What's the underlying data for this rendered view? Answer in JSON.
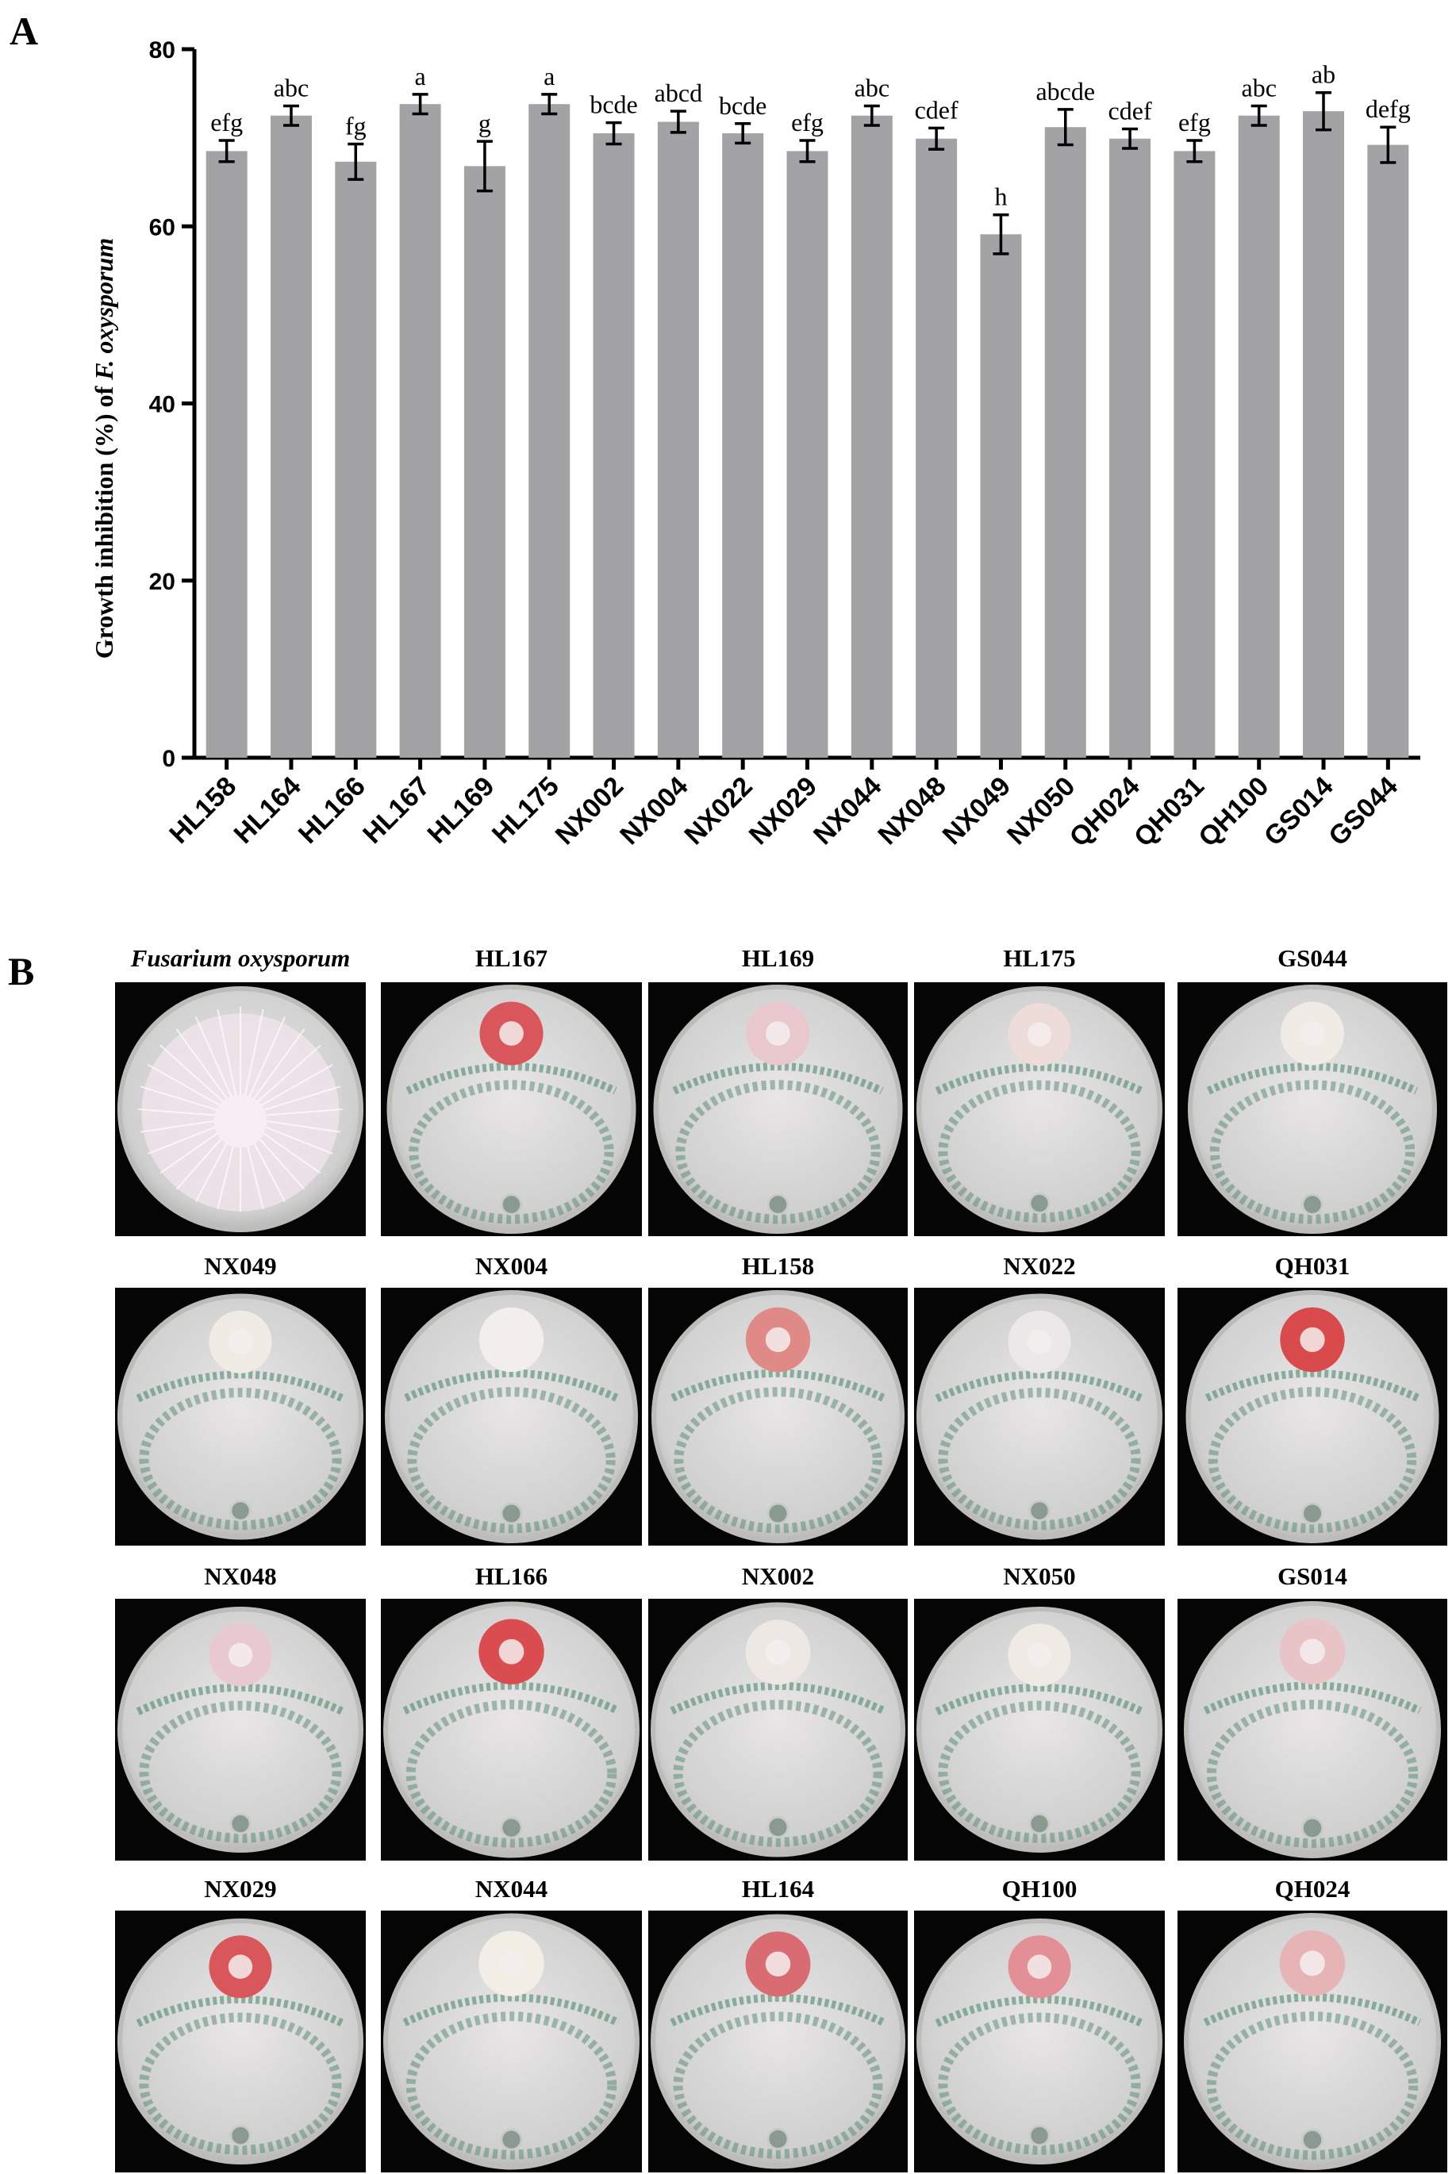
{
  "panels": {
    "a": "A",
    "b": "B"
  },
  "chart_data": {
    "type": "bar",
    "title": "",
    "xlabel": "",
    "ylabel_prefix": "Growth inhibition (%) of ",
    "ylabel_italic": "F. oxysporum",
    "ylim": [
      0,
      80
    ],
    "yticks": [
      "0",
      "20",
      "40",
      "60",
      "80"
    ],
    "categories": [
      "HL158",
      "HL164",
      "HL166",
      "HL167",
      "HL169",
      "HL175",
      "NX002",
      "NX004",
      "NX022",
      "NX029",
      "NX044",
      "NX048",
      "NX049",
      "NX050",
      "QH024",
      "QH031",
      "QH100",
      "GS014",
      "GS044"
    ],
    "values": [
      68.5,
      72.5,
      67.3,
      73.8,
      66.8,
      73.8,
      70.5,
      71.8,
      70.5,
      68.5,
      72.5,
      69.9,
      59.1,
      71.2,
      69.9,
      68.5,
      72.5,
      73.0,
      69.2
    ],
    "errors": [
      1.2,
      1.1,
      2.0,
      1.1,
      2.8,
      1.1,
      1.2,
      1.2,
      1.1,
      1.2,
      1.1,
      1.2,
      2.2,
      2.0,
      1.1,
      1.2,
      1.1,
      2.1,
      2.0
    ],
    "significance": [
      "efg",
      "abc",
      "fg",
      "a",
      "g",
      "a",
      "bcde",
      "abcd",
      "bcde",
      "efg",
      "abc",
      "cdef",
      "h",
      "abcde",
      "cdef",
      "efg",
      "abc",
      "ab",
      "defg"
    ],
    "bar_color": "#a3a3a6",
    "grid": false
  },
  "plates": {
    "rows": [
      [
        {
          "label": "Fusarium oxysporum",
          "italic": true,
          "type": "control"
        },
        {
          "label": "HL167",
          "italic": false,
          "type": "treated",
          "colony": "#d9575a"
        },
        {
          "label": "HL169",
          "italic": false,
          "type": "treated",
          "colony": "#e8c8cc"
        },
        {
          "label": "HL175",
          "italic": false,
          "type": "treated",
          "colony": "#eddcd8"
        },
        {
          "label": "GS044",
          "italic": false,
          "type": "treated",
          "colony": "#f0ebe5"
        }
      ],
      [
        {
          "label": "NX049",
          "italic": false,
          "type": "treated",
          "colony": "#f0ebe5"
        },
        {
          "label": "NX004",
          "italic": false,
          "type": "treated",
          "colony": "#f2eeec"
        },
        {
          "label": "HL158",
          "italic": false,
          "type": "treated",
          "colony": "#df8a86"
        },
        {
          "label": "NX022",
          "italic": false,
          "type": "treated",
          "colony": "#ece8ea"
        },
        {
          "label": "QH031",
          "italic": false,
          "type": "treated",
          "colony": "#d94a4c"
        }
      ],
      [
        {
          "label": "NX048",
          "italic": false,
          "type": "treated",
          "colony": "#e8c9cf"
        },
        {
          "label": "HL166",
          "italic": false,
          "type": "treated",
          "colony": "#d94d50"
        },
        {
          "label": "NX002",
          "italic": false,
          "type": "treated",
          "colony": "#ede8e4"
        },
        {
          "label": "NX050",
          "italic": false,
          "type": "treated",
          "colony": "#efeae4"
        },
        {
          "label": "GS014",
          "italic": false,
          "type": "treated",
          "colony": "#e9c4c6"
        }
      ],
      [
        {
          "label": "NX029",
          "italic": false,
          "type": "treated",
          "colony": "#d9575a"
        },
        {
          "label": "NX044",
          "italic": false,
          "type": "treated",
          "colony": "#f2eee6"
        },
        {
          "label": "HL164",
          "italic": false,
          "type": "treated",
          "colony": "#d96b72"
        },
        {
          "label": "QH100",
          "italic": false,
          "type": "treated",
          "colony": "#e29096"
        },
        {
          "label": "QH024",
          "italic": false,
          "type": "treated",
          "colony": "#e7b4b6"
        }
      ]
    ]
  }
}
